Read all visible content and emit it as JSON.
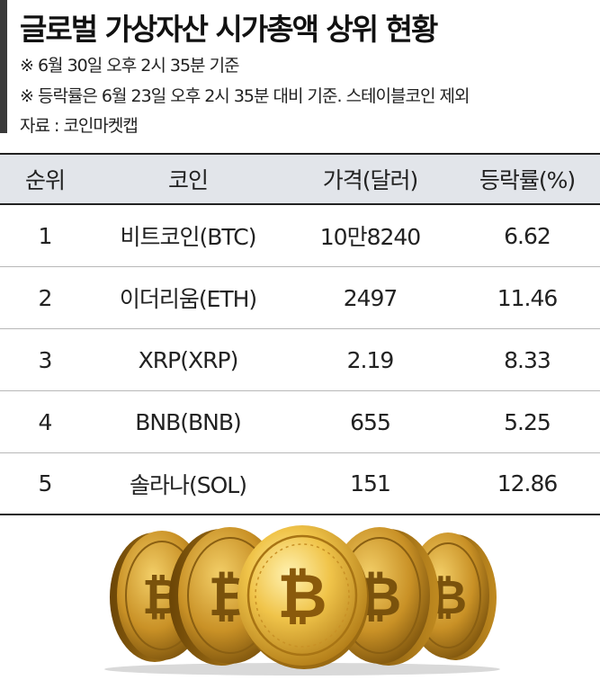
{
  "header": {
    "title": "글로벌 가상자산 시가총액 상위 현황",
    "note1": "※ 6월 30일 오후 2시 35분 기준",
    "note2": "※ 등락률은 6월 23일 오후 2시 35분 대비 기준. 스테이블코인 제외",
    "source": "자료 : 코인마켓캡"
  },
  "table": {
    "columns": [
      "순위",
      "코인",
      "가격(달러)",
      "등락률(%)"
    ],
    "rows": [
      {
        "rank": "1",
        "coin": "비트코인(BTC)",
        "price": "10만8240",
        "change": "6.62"
      },
      {
        "rank": "2",
        "coin": "이더리움(ETH)",
        "price": "2497",
        "change": "11.46"
      },
      {
        "rank": "3",
        "coin": "XRP(XRP)",
        "price": "2.19",
        "change": "8.33"
      },
      {
        "rank": "4",
        "coin": "BNB(BNB)",
        "price": "655",
        "change": "5.25"
      },
      {
        "rank": "5",
        "coin": "솔라나(SOL)",
        "price": "151",
        "change": "12.86"
      }
    ]
  },
  "illustration": {
    "icon": "bitcoin-coins-icon",
    "colors": {
      "gold_light": "#f6d36b",
      "gold_mid": "#d9a733",
      "gold_dark": "#8a5f12"
    }
  }
}
